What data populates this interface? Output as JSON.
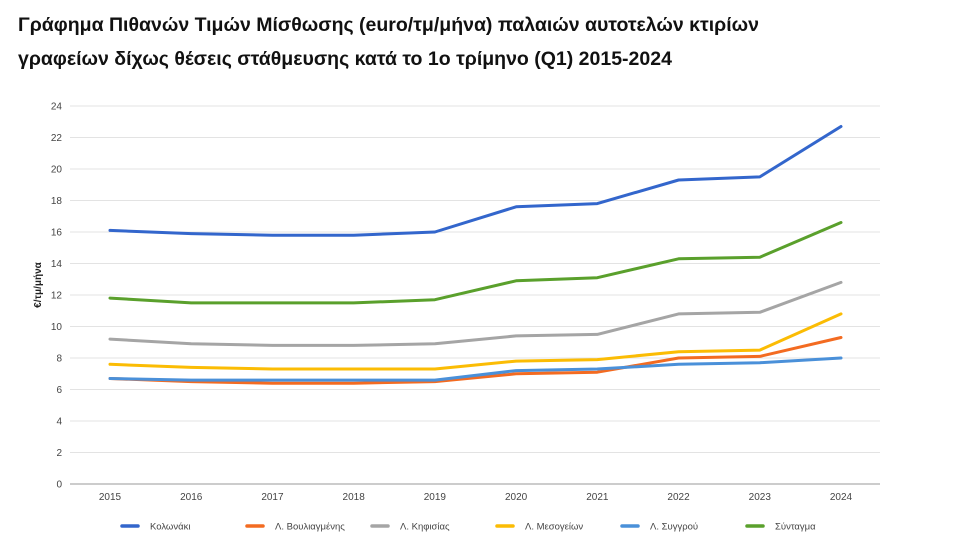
{
  "title_lines": [
    "Γράφημα Πιθανών Τιμών Μίσθωσης (euro/τμ/μήνα) παλαιών αυτοτελών κτιρίων",
    "γραφείων δίχως θέσεις στάθμευσης κατά το 1ο τρίμηνο (Q1) 2015-2024"
  ],
  "chart_data": {
    "type": "line",
    "title": "Γράφημα Πιθανών Τιμών Μίσθωσης (euro/τμ/μήνα) παλαιών αυτοτελών κτιρίων γραφείων δίχως θέσεις στάθμευσης κατά το 1ο τρίμηνο (Q1) 2015-2024",
    "xlabel": "",
    "ylabel": "€/τμ/μήνα",
    "x": [
      "2015",
      "2016",
      "2017",
      "2018",
      "2019",
      "2020",
      "2021",
      "2022",
      "2023",
      "2024"
    ],
    "ylim": [
      0,
      24
    ],
    "yticks": [
      0,
      2,
      4,
      6,
      8,
      10,
      12,
      14,
      16,
      18,
      20,
      22,
      24
    ],
    "grid": true,
    "legend_position": "bottom",
    "series": [
      {
        "name": "Κολωνάκι",
        "color": "#3366cc",
        "values": [
          16.1,
          15.9,
          15.8,
          15.8,
          16.0,
          17.6,
          17.8,
          19.3,
          19.5,
          22.7
        ]
      },
      {
        "name": "Λ. Βουλιαγμένης",
        "color": "#f36b21",
        "values": [
          6.7,
          6.5,
          6.4,
          6.4,
          6.5,
          7.0,
          7.1,
          8.0,
          8.1,
          9.3
        ]
      },
      {
        "name": "Λ. Κηφισίας",
        "color": "#a5a5a5",
        "values": [
          9.2,
          8.9,
          8.8,
          8.8,
          8.9,
          9.4,
          9.5,
          10.8,
          10.9,
          12.8
        ]
      },
      {
        "name": "Λ. Μεσογείων",
        "color": "#fbbc04",
        "values": [
          7.6,
          7.4,
          7.3,
          7.3,
          7.3,
          7.8,
          7.9,
          8.4,
          8.5,
          10.8
        ]
      },
      {
        "name": "Λ. Συγγρού",
        "color": "#4a90d9",
        "values": [
          6.7,
          6.6,
          6.6,
          6.6,
          6.6,
          7.2,
          7.3,
          7.6,
          7.7,
          8.0
        ]
      },
      {
        "name": "Σύνταγμα",
        "color": "#5aa02c",
        "values": [
          11.8,
          11.5,
          11.5,
          11.5,
          11.7,
          12.9,
          13.1,
          14.3,
          14.4,
          16.6
        ]
      }
    ]
  }
}
